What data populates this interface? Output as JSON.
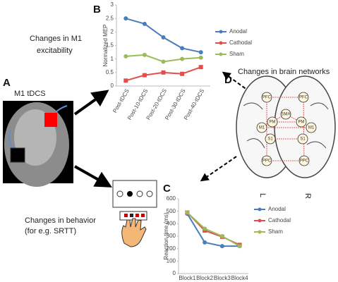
{
  "chart_data": [
    {
      "type": "line",
      "panel": "B",
      "y_label": "Normalized MEP",
      "categories": [
        "Post-tDCS",
        "Post-10-tDCS",
        "Post-20-tDCS",
        "Post-30-tDCS",
        "Post-40-tDCS"
      ],
      "series": [
        {
          "name": "Anodal",
          "color": "#4a7ebb",
          "values": [
            2.5,
            2.3,
            1.8,
            1.4,
            1.25
          ]
        },
        {
          "name": "Cathodal",
          "color": "#e0504a",
          "values": [
            0.2,
            0.4,
            0.5,
            0.45,
            0.7
          ]
        },
        {
          "name": "Sham",
          "color": "#9bbb59",
          "values": [
            1.1,
            1.15,
            0.9,
            1.0,
            1.05
          ]
        }
      ],
      "ylim": [
        0,
        3
      ],
      "yticks": [
        0,
        0.5,
        1,
        1.5,
        2,
        2.5,
        3
      ],
      "grid": false
    },
    {
      "type": "line",
      "panel": "C",
      "y_label": "Reaction time (ms)",
      "categories": [
        "Block1",
        "Block2",
        "Block3",
        "Block4"
      ],
      "series": [
        {
          "name": "Anodal",
          "color": "#4a7ebb",
          "values": [
            480,
            250,
            220,
            220
          ]
        },
        {
          "name": "Cathodal",
          "color": "#e0504a",
          "values": [
            490,
            345,
            295,
            230
          ]
        },
        {
          "name": "Sham",
          "color": "#9bbb59",
          "values": [
            490,
            360,
            300,
            220
          ]
        }
      ],
      "ylim": [
        0,
        600
      ],
      "yticks": [
        0,
        100,
        200,
        300,
        400,
        500,
        600
      ],
      "grid": false
    }
  ],
  "figure": {
    "panel_a": "A",
    "stimulation": "M1 tDCS",
    "excitability": [
      "Changes in M1",
      "excitability"
    ],
    "panel_d": "D",
    "networks": "Changes in brain networks",
    "behavior": [
      "Changes in behavior",
      "(for e.g. SRTT)"
    ],
    "brain_nodes": [
      "PFC",
      "PFC",
      "SMA",
      "PM",
      "PM",
      "M1",
      "M1",
      "S1",
      "S1",
      "PPC",
      "PPC"
    ],
    "hemispheres": [
      "L",
      "R"
    ]
  }
}
